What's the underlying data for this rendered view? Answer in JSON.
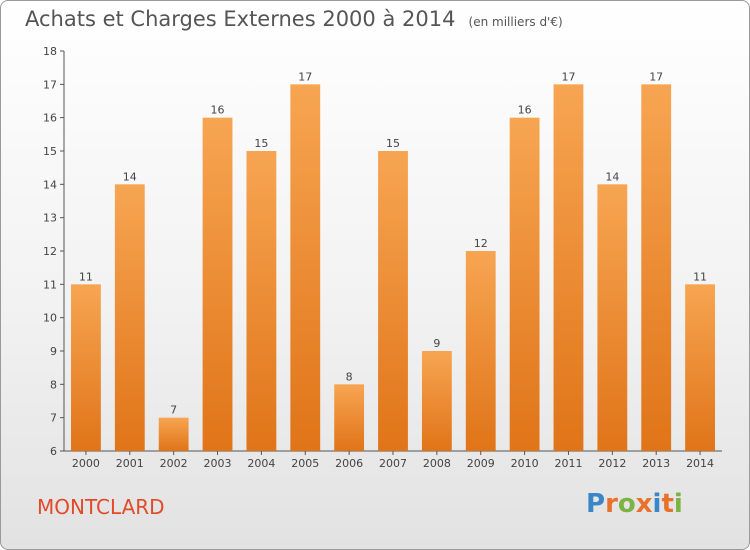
{
  "title": "Achats et Charges Externes 2000 à 2014",
  "unit_note": "(en milliers d'€)",
  "city": "MONTCLARD",
  "logo": {
    "text": "Proxiti",
    "letters": [
      {
        "char": "P",
        "color": "#3a86c8"
      },
      {
        "char": "r",
        "color": "#e8722a"
      },
      {
        "char": "o",
        "color": "#7cb342"
      },
      {
        "char": "x",
        "color": "#e8722a"
      },
      {
        "char": "i",
        "color": "#3a86c8"
      },
      {
        "char": "t",
        "color": "#e8722a"
      },
      {
        "char": "i",
        "color": "#7cb342"
      }
    ]
  },
  "colors": {
    "bar_top": "#f7a552",
    "bar_bottom": "#e07418",
    "axis": "#555555",
    "title": "#555555"
  },
  "chart_data": {
    "type": "bar",
    "categories": [
      "2000",
      "2001",
      "2002",
      "2003",
      "2004",
      "2005",
      "2006",
      "2007",
      "2008",
      "2009",
      "2010",
      "2011",
      "2012",
      "2013",
      "2014"
    ],
    "values": [
      11,
      14,
      7,
      16,
      15,
      17,
      8,
      15,
      9,
      12,
      16,
      17,
      14,
      17,
      11
    ],
    "ylim": [
      6,
      18
    ],
    "yticks": [
      6,
      7,
      8,
      9,
      10,
      11,
      12,
      13,
      14,
      15,
      16,
      17,
      18
    ],
    "grid": false,
    "title": "Achats et Charges Externes 2000 à 2014",
    "xlabel": "",
    "ylabel": ""
  }
}
